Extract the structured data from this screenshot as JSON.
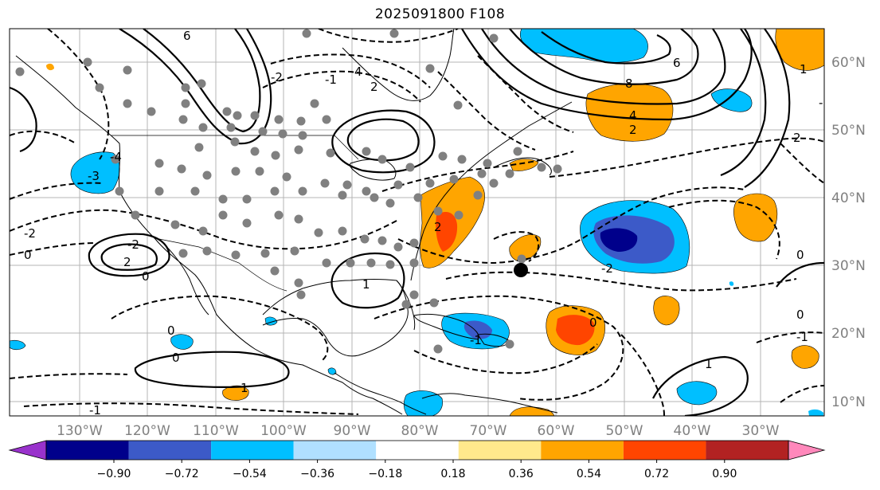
{
  "title": "2025091800 F108",
  "lon_labels": [
    "130°W",
    "120°W",
    "110°W",
    "100°W",
    "90°W",
    "80°W",
    "70°W",
    "60°W",
    "50°W",
    "40°W",
    "30°W"
  ],
  "lat_labels": [
    "60°N",
    "50°N",
    "40°N",
    "30°N",
    "20°N",
    "10°N"
  ],
  "colorbar": {
    "ticks": [
      "−0.90",
      "−0.72",
      "−0.54",
      "−0.36",
      "−0.18",
      "0.18",
      "0.36",
      "0.54",
      "0.72",
      "0.90"
    ],
    "colors": [
      "#9932cc",
      "#00008b",
      "#3c5ac8",
      "#00bfff",
      "#b0e0ff",
      "#ffffff",
      "#ffe98c",
      "#ffa500",
      "#ff4500",
      "#b22222",
      "#ff88bb"
    ]
  },
  "contour_labels": [
    "6",
    "4",
    "2",
    "0",
    "-2",
    "-3",
    "-4",
    "-2",
    "-1",
    "0",
    "1",
    "2",
    "8",
    "6",
    "4",
    "2",
    "-2",
    "2",
    "0",
    "-1",
    "-2",
    "1",
    "0",
    "0",
    "-1",
    "1",
    "0",
    "-1",
    "2",
    "1",
    "0",
    "-1"
  ]
}
